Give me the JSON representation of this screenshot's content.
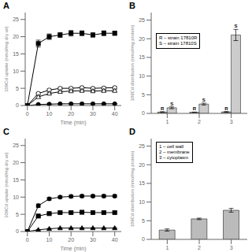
{
  "chart_data": [
    {
      "type": "line",
      "title": "A",
      "x": [
        0,
        5,
        10,
        15,
        20,
        25,
        30,
        35,
        40
      ],
      "xlabel": "Time (min)",
      "ylabel": "109Cd uptake (nmol/mg dry wt)",
      "xlim": [
        -1,
        43
      ],
      "xticks": [
        0,
        10,
        20,
        30,
        40
      ],
      "ylim": [
        0,
        27
      ],
      "yticks": [
        0,
        5,
        10,
        15,
        20,
        25
      ],
      "series": [
        {
          "color": "black",
          "marker": "square",
          "values": [
            0,
            18,
            20,
            20.5,
            21,
            21,
            20.5,
            21,
            21
          ],
          "errors": [
            0,
            1,
            0.8,
            0.7,
            0.8,
            0.7,
            0.6,
            0.7,
            0.6
          ]
        },
        {
          "color": "black",
          "marker": "circle_open",
          "values": [
            0,
            3.5,
            4.5,
            5,
            5,
            5.2,
            5,
            5.1,
            5.2
          ],
          "errors": [
            0,
            0.3,
            0.3,
            0.3,
            0.3,
            0.3,
            0.3,
            0.3,
            0.3
          ]
        },
        {
          "color": "black",
          "marker": "triangle_open",
          "values": [
            0,
            2.5,
            3.5,
            4,
            4.2,
            4.3,
            4.2,
            4.3,
            4.3
          ],
          "errors": [
            0,
            0.3,
            0.3,
            0.3,
            0.3,
            0.3,
            0.3,
            0.3,
            0.3
          ]
        },
        {
          "color": "black",
          "marker": "circle",
          "values": [
            0,
            0.3,
            0.4,
            0.5,
            0.5,
            0.5,
            0.5,
            0.5,
            0.5
          ],
          "errors": [
            0,
            0.05,
            0.05,
            0.05,
            0.05,
            0.05,
            0.05,
            0.05,
            0.05
          ]
        }
      ]
    },
    {
      "type": "bar",
      "title": "B",
      "categories": [
        1,
        2,
        3
      ],
      "ylabel": "109Cd distribution (nmol/mg protein)",
      "ylim": [
        0,
        27
      ],
      "yticks": [
        0,
        5,
        10,
        15,
        20,
        25
      ],
      "series": [
        {
          "name": "R",
          "color": "#aaaaaa",
          "values": [
            0.35,
            0.3,
            0.4
          ],
          "errors": [
            0.1,
            0.05,
            0.08
          ]
        },
        {
          "name": "S",
          "color": "#cccccc",
          "values": [
            1.5,
            2.5,
            21
          ],
          "errors": [
            0.25,
            0.25,
            1.5
          ]
        }
      ],
      "annotations": [
        "R – strain 17810R",
        "S – strain 17810S"
      ]
    },
    {
      "type": "line",
      "title": "C",
      "x": [
        0,
        5,
        10,
        15,
        20,
        25,
        30,
        35,
        40
      ],
      "xlabel": "Time (min)",
      "ylabel": "109Cd uptake (nmol/mg dry wt)",
      "xlim": [
        -1,
        43
      ],
      "xticks": [
        0,
        10,
        20,
        30,
        40
      ],
      "ylim": [
        0,
        27
      ],
      "yticks": [
        0,
        5,
        10,
        15,
        20,
        25
      ],
      "series": [
        {
          "color": "black",
          "marker": "circle",
          "values": [
            0,
            7.5,
            9.5,
            10,
            10.2,
            10.3,
            10.3,
            10.3,
            10.3
          ],
          "errors": [
            0,
            0.5,
            0.4,
            0.4,
            0.4,
            0.4,
            0.4,
            0.4,
            0.4
          ]
        },
        {
          "color": "black",
          "marker": "square",
          "values": [
            0,
            4.5,
            5.2,
            5.5,
            5.5,
            5.6,
            5.5,
            5.5,
            5.5
          ],
          "errors": [
            0,
            0.3,
            0.3,
            0.3,
            0.3,
            0.3,
            0.3,
            0.3,
            0.3
          ]
        },
        {
          "color": "black",
          "marker": "triangle",
          "values": [
            0,
            0.5,
            0.8,
            1.0,
            1.0,
            1.0,
            1.0,
            1.0,
            1.0
          ],
          "errors": [
            0,
            0.1,
            0.1,
            0.1,
            0.1,
            0.1,
            0.1,
            0.1,
            0.1
          ]
        }
      ]
    },
    {
      "type": "bar",
      "title": "D",
      "categories": [
        1,
        2,
        3
      ],
      "ylabel": "109Cd distribution (nmol/mg protein)",
      "ylim": [
        0,
        27
      ],
      "yticks": [
        0,
        5,
        10,
        15,
        20,
        25
      ],
      "values": [
        2.5,
        5.5,
        7.8
      ],
      "errors": [
        0.3,
        0.2,
        0.5
      ],
      "color": "#bbbbbb",
      "annotations": [
        "1 – cell wall",
        "2 – membrane",
        "3 – cytoplasm"
      ]
    }
  ]
}
